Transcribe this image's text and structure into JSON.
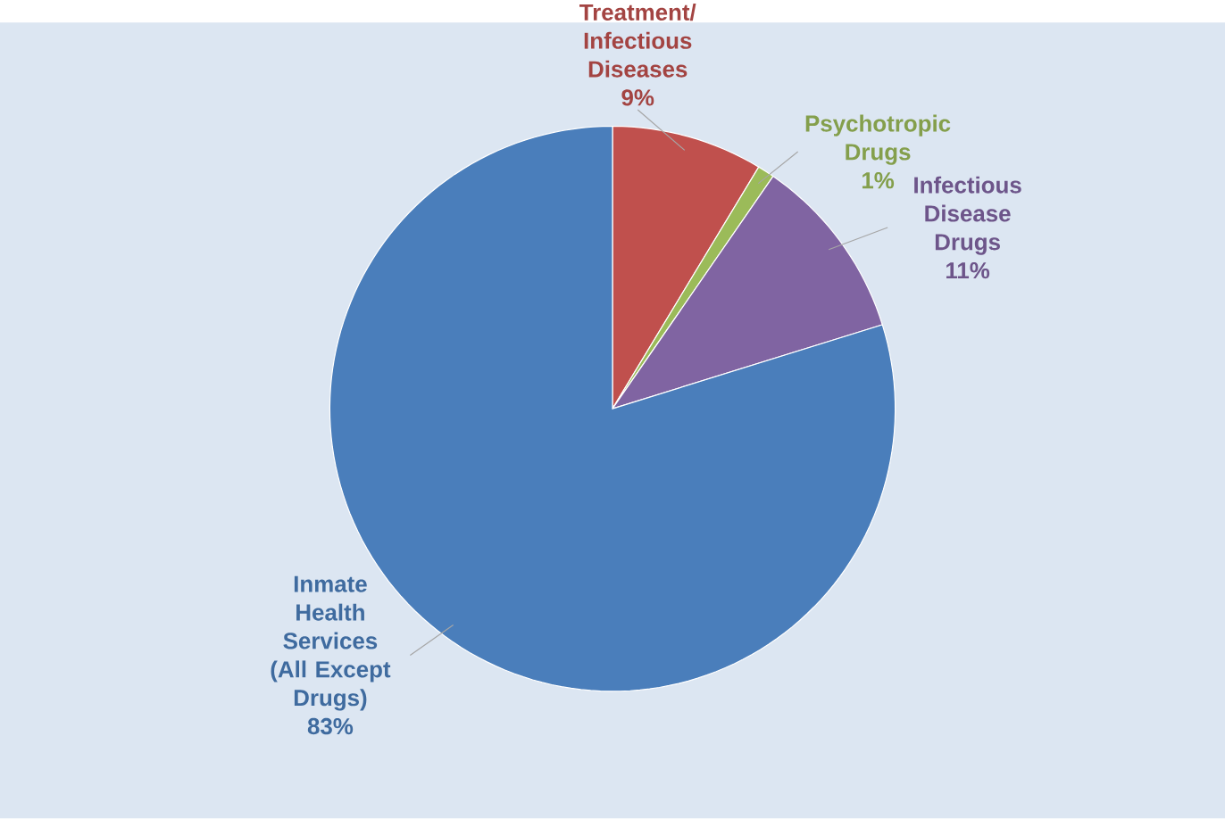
{
  "chart_data": {
    "type": "pie",
    "categories": [
      "Treatment/ Infectious Diseases",
      "Psychotropic Drugs",
      "Infectious Disease Drugs",
      "Inmate Health Services (All Except Drugs)"
    ],
    "values": [
      9,
      1,
      11,
      83
    ],
    "value_labels": [
      "9%",
      "1%",
      "11%",
      "83%"
    ],
    "colors": [
      "#c0504d",
      "#9bbb59",
      "#8064a2",
      "#4a7ebb"
    ]
  }
}
